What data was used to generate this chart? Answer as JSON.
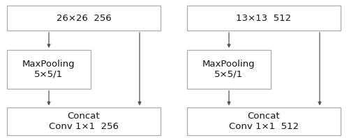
{
  "left": {
    "top_label": "26×26  256",
    "mid_label": "MaxPooling\n5×5/1",
    "bot_label": "Concat\nConv 1×1  256"
  },
  "right": {
    "top_label": "13×13  512",
    "mid_label": "MaxPooling\n5×5/1",
    "bot_label": "Concat\nConv 1×1  512"
  },
  "box_edge_color": "#aaaaaa",
  "box_face_color": "#ffffff",
  "arrow_color": "#555555",
  "text_color": "#111111",
  "background_color": "#ffffff",
  "fontsize": 9.5,
  "fig_width": 5.0,
  "fig_height": 1.99
}
